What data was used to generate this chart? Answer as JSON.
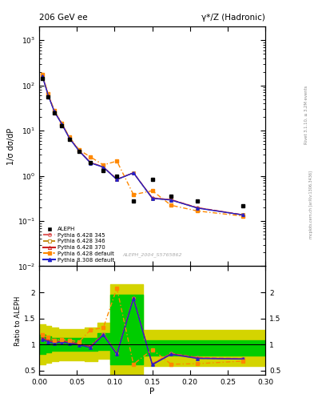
{
  "title_left": "206 GeV ee",
  "title_right": "γ*/Z (Hadronic)",
  "ylabel_main": "1/σ dσ/dP",
  "ylabel_ratio": "Ratio to ALEPH",
  "xlabel": "P",
  "right_label_top": "Rivet 3.1.10, ≥ 3.2M events",
  "right_label_bottom": "mcplots.cern.ch [arXiv:1306.3436]",
  "watermark": "ALEPH_2004_S5765862",
  "aleph_x": [
    0.004,
    0.012,
    0.02,
    0.03,
    0.04,
    0.053,
    0.068,
    0.085,
    0.103,
    0.125,
    0.15,
    0.175,
    0.21,
    0.27
  ],
  "aleph_y": [
    140.0,
    55.0,
    25.0,
    13.0,
    6.5,
    3.5,
    2.0,
    1.3,
    1.0,
    0.28,
    0.85,
    0.35,
    0.28,
    0.22
  ],
  "mc_x": [
    0.004,
    0.012,
    0.02,
    0.03,
    0.04,
    0.053,
    0.068,
    0.085,
    0.103,
    0.125,
    0.15,
    0.175,
    0.21,
    0.27
  ],
  "mc_base_y": [
    148.0,
    56.5,
    25.8,
    13.3,
    6.65,
    3.55,
    2.05,
    1.32,
    1.02,
    0.62,
    0.52,
    0.36,
    0.265,
    0.19
  ],
  "ratio_x": [
    0.004,
    0.012,
    0.02,
    0.03,
    0.04,
    0.053,
    0.068,
    0.085,
    0.103,
    0.125,
    0.15,
    0.175,
    0.21,
    0.27
  ],
  "ratio_py345": [
    1.12,
    1.08,
    1.05,
    1.07,
    1.05,
    1.02,
    0.97,
    1.2,
    0.83,
    1.9,
    0.63,
    0.83,
    0.75,
    0.73
  ],
  "ratio_py346": [
    1.1,
    1.06,
    1.03,
    1.05,
    1.03,
    1.0,
    0.95,
    1.18,
    0.81,
    1.88,
    0.61,
    0.81,
    0.73,
    0.72
  ],
  "ratio_py370": [
    1.12,
    1.08,
    1.04,
    1.06,
    1.04,
    1.01,
    0.96,
    1.19,
    0.82,
    1.89,
    0.62,
    0.82,
    0.74,
    0.72
  ],
  "ratio_pydef": [
    1.18,
    1.14,
    1.08,
    1.1,
    1.08,
    1.05,
    1.28,
    1.32,
    2.08,
    0.62,
    0.9,
    0.62,
    0.63,
    0.68
  ],
  "ratio_py8def": [
    1.1,
    1.05,
    1.02,
    1.05,
    1.02,
    0.99,
    0.94,
    1.18,
    0.81,
    1.88,
    0.61,
    0.81,
    0.73,
    0.72
  ],
  "band_x_edges": [
    0.0,
    0.008,
    0.016,
    0.025,
    0.035,
    0.046,
    0.06,
    0.077,
    0.094,
    0.114,
    0.138,
    0.163,
    0.195,
    0.245,
    0.3
  ],
  "band_green_lo": [
    0.82,
    0.85,
    0.88,
    0.88,
    0.88,
    0.88,
    0.88,
    0.9,
    0.62,
    0.62,
    0.78,
    0.78,
    0.78,
    0.78,
    0.78
  ],
  "band_green_hi": [
    1.18,
    1.15,
    1.12,
    1.12,
    1.12,
    1.12,
    1.12,
    1.22,
    1.95,
    1.95,
    1.08,
    1.08,
    1.08,
    1.08,
    1.08
  ],
  "band_yellow_lo": [
    0.62,
    0.65,
    0.68,
    0.7,
    0.7,
    0.7,
    0.68,
    0.72,
    0.42,
    0.42,
    0.58,
    0.58,
    0.58,
    0.58,
    0.58
  ],
  "band_yellow_hi": [
    1.38,
    1.35,
    1.32,
    1.3,
    1.3,
    1.3,
    1.32,
    1.42,
    2.15,
    2.15,
    1.28,
    1.28,
    1.28,
    1.28,
    1.28
  ],
  "color_py345": "#e06060",
  "color_py346": "#c89020",
  "color_py370": "#cc2020",
  "color_pydef": "#ff8800",
  "color_py8def": "#2222cc",
  "color_aleph": "#000000",
  "color_green": "#00cc00",
  "color_yellow": "#d4d400",
  "xlim": [
    0.0,
    0.3
  ],
  "ylim_main": [
    0.01,
    2000.0
  ],
  "ylim_ratio": [
    0.41,
    2.5
  ],
  "yticks_ratio": [
    0.5,
    1.0,
    1.5,
    2.0
  ],
  "yticklabels_ratio": [
    "0.5",
    "1",
    "1.5",
    "2"
  ]
}
